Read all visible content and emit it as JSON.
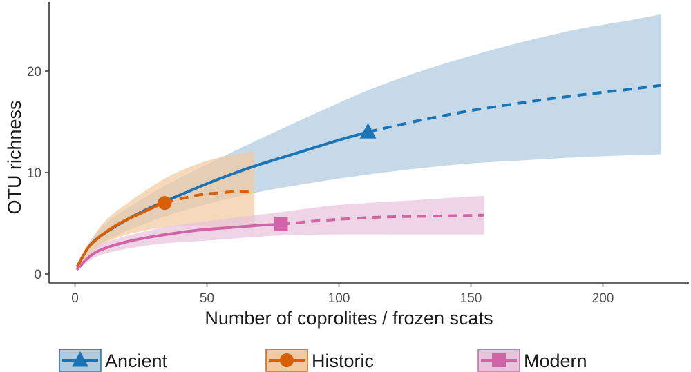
{
  "chart_data": {
    "type": "line",
    "title": "",
    "xlabel": "Number of coprolites / frozen scats",
    "ylabel": "OTU richness",
    "xlim": [
      -7,
      230
    ],
    "ylim": [
      -1,
      26.5
    ],
    "x_ticks": [
      0,
      50,
      100,
      150,
      200
    ],
    "y_ticks": [
      0,
      10,
      20
    ],
    "grid": false,
    "legend_position": "bottom",
    "colors": {
      "Ancient": "#1a73b5",
      "Historic": "#d95f02",
      "Modern": "#d163a7",
      "Ancient_band": "#aecbdf",
      "Historic_band": "#f3c9a1",
      "Modern_band": "#e8c3db"
    },
    "series": [
      {
        "name": "Ancient",
        "marker": "triangle",
        "observed": {
          "x": 111,
          "y": 14.0
        },
        "interpolated": {
          "x": [
            1,
            5,
            10,
            20,
            30,
            40,
            50,
            60,
            70,
            80,
            90,
            100,
            111
          ],
          "y": [
            0.8,
            2.6,
            3.8,
            5.4,
            6.7,
            7.8,
            8.9,
            9.9,
            10.8,
            11.6,
            12.4,
            13.2,
            14.0
          ]
        },
        "extrapolated": {
          "x": [
            111,
            130,
            150,
            170,
            190,
            210,
            222
          ],
          "y": [
            14.0,
            15.1,
            16.1,
            16.9,
            17.6,
            18.2,
            18.6
          ]
        },
        "ci_lower": {
          "x": [
            1,
            10,
            30,
            50,
            70,
            90,
            111,
            130,
            150,
            170,
            190,
            210,
            222
          ],
          "y": [
            0.6,
            3.0,
            5.3,
            6.9,
            8.1,
            9.0,
            9.8,
            10.4,
            10.9,
            11.2,
            11.5,
            11.7,
            11.8
          ]
        },
        "ci_upper": {
          "x": [
            1,
            10,
            30,
            50,
            70,
            90,
            111,
            130,
            150,
            170,
            190,
            210,
            222
          ],
          "y": [
            1.0,
            4.6,
            8.1,
            10.8,
            13.3,
            15.7,
            18.1,
            19.9,
            21.5,
            22.9,
            24.1,
            25.0,
            25.6
          ]
        }
      },
      {
        "name": "Historic",
        "marker": "circle",
        "observed": {
          "x": 34,
          "y": 7.0
        },
        "interpolated": {
          "x": [
            1,
            5,
            10,
            15,
            20,
            25,
            30,
            34
          ],
          "y": [
            0.8,
            2.6,
            3.8,
            4.7,
            5.4,
            6.0,
            6.6,
            7.0
          ]
        },
        "extrapolated": {
          "x": [
            34,
            40,
            45,
            50,
            55,
            60,
            68
          ],
          "y": [
            7.0,
            7.4,
            7.7,
            7.9,
            8.0,
            8.1,
            8.2
          ]
        },
        "ci_lower": {
          "x": [
            1,
            10,
            20,
            34,
            45,
            55,
            68
          ],
          "y": [
            0.6,
            2.8,
            3.9,
            4.6,
            4.7,
            4.6,
            4.5
          ]
        },
        "ci_upper": {
          "x": [
            1,
            10,
            20,
            34,
            45,
            55,
            68
          ],
          "y": [
            1.0,
            4.8,
            7.0,
            9.4,
            10.7,
            11.5,
            12.1
          ]
        }
      },
      {
        "name": "Modern",
        "marker": "square",
        "observed": {
          "x": 78,
          "y": 4.9
        },
        "interpolated": {
          "x": [
            1,
            5,
            10,
            20,
            30,
            40,
            50,
            60,
            70,
            78
          ],
          "y": [
            0.5,
            1.6,
            2.4,
            3.2,
            3.7,
            4.1,
            4.4,
            4.6,
            4.8,
            4.9
          ]
        },
        "extrapolated": {
          "x": [
            78,
            95,
            115,
            135,
            155
          ],
          "y": [
            4.9,
            5.3,
            5.6,
            5.7,
            5.8
          ]
        },
        "ci_lower": {
          "x": [
            1,
            10,
            30,
            50,
            78,
            100,
            130,
            155
          ],
          "y": [
            0.4,
            1.9,
            2.9,
            3.3,
            3.8,
            3.9,
            3.9,
            3.9
          ]
        },
        "ci_upper": {
          "x": [
            1,
            10,
            30,
            50,
            78,
            100,
            130,
            155
          ],
          "y": [
            0.7,
            2.9,
            4.4,
            5.2,
            6.1,
            6.8,
            7.3,
            7.7
          ]
        }
      }
    ]
  }
}
